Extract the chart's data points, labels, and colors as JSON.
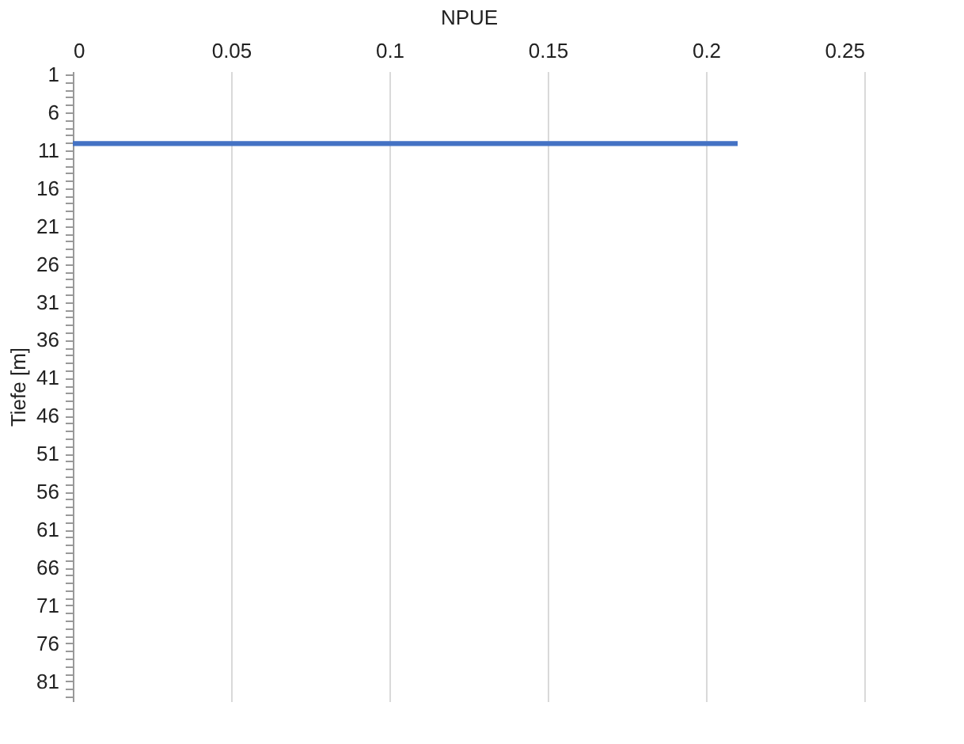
{
  "chart_data": {
    "type": "bar",
    "orientation": "horizontal",
    "xlabel": "NPUE",
    "ylabel": "Tiefe [m]",
    "categories": [
      "1",
      null,
      null,
      null,
      null,
      "6",
      null,
      null,
      null,
      null,
      "11",
      null,
      null,
      null,
      null,
      "16",
      null,
      null,
      null,
      null,
      "21",
      null,
      null,
      null,
      null,
      "26",
      null,
      null,
      null,
      null,
      "31",
      null,
      null,
      null,
      null,
      "36",
      null,
      null,
      null,
      null,
      "41",
      null,
      null,
      null,
      null,
      "46",
      null,
      null,
      null,
      null,
      "51",
      null,
      null,
      null,
      null,
      "56",
      null,
      null,
      null,
      null,
      "61",
      null,
      null,
      null,
      null,
      "66",
      null,
      null,
      null,
      null,
      "71",
      null,
      null,
      null,
      null,
      "76",
      null,
      null,
      null,
      null,
      "81",
      null,
      null
    ],
    "values": [
      null,
      null,
      null,
      null,
      null,
      null,
      null,
      null,
      null,
      0.21,
      null,
      null,
      null,
      null,
      null,
      null,
      null,
      null,
      null,
      null,
      null,
      null,
      null,
      null,
      null,
      null,
      null,
      null,
      null,
      null,
      null,
      null,
      null,
      null,
      null,
      null,
      null,
      null,
      null,
      null,
      null,
      null,
      null,
      null,
      null,
      null,
      null,
      null,
      null,
      null,
      null,
      null,
      null,
      null,
      null,
      null,
      null,
      null,
      null,
      null,
      null,
      null,
      null,
      null,
      null,
      null,
      null,
      null,
      null,
      null,
      null,
      null,
      null,
      null,
      null,
      null,
      null,
      null,
      null,
      null,
      null,
      null,
      null
    ],
    "color": "#4472c4",
    "xlim": [
      0,
      0.25
    ],
    "xticks": [
      0,
      0.05,
      0.1,
      0.15,
      0.2,
      0.25
    ],
    "grid": "x"
  }
}
